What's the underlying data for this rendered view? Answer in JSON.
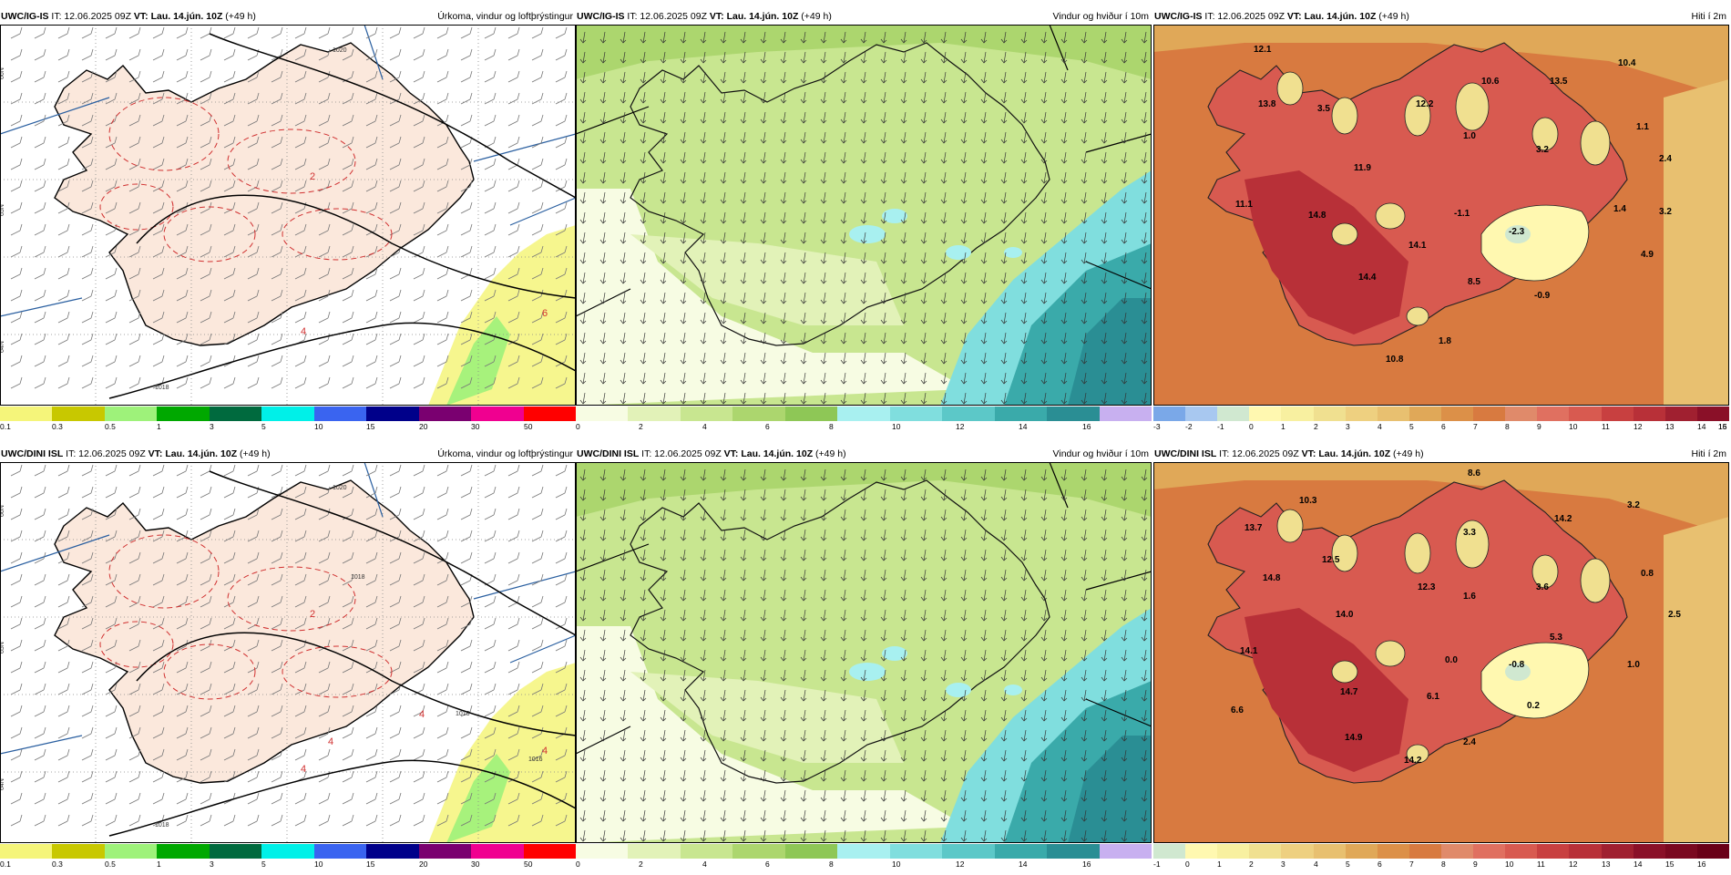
{
  "panels": [
    {
      "id": "igis-precip",
      "model": "UWC/IG-IS",
      "it": "IT: 12.06.2025 09Z",
      "vt": "VT: Lau. 14.jún. 10Z",
      "lead": "(+49 h)",
      "product": "Úrkoma, vindur og loftþrýstingur",
      "palette": [
        "#f5f57a",
        "#c8c800",
        "#9ef27a",
        "#00a800",
        "#006a3e",
        "#00f0e8",
        "#3a64f0",
        "#00008a",
        "#7a0070",
        "#f00090",
        "#ff0000"
      ],
      "ticks": [
        "0.1",
        "0.3",
        "0.5",
        "1",
        "3",
        "5",
        "10",
        "15",
        "20",
        "30",
        "50"
      ],
      "isobars": [
        "1020",
        "1018"
      ],
      "map_labels": [
        "2",
        "6",
        "4"
      ],
      "lat_labels": [
        "66N",
        "65N",
        "64N"
      ]
    },
    {
      "id": "igis-wind",
      "model": "UWC/IG-IS",
      "it": "IT: 12.06.2025 09Z",
      "vt": "VT: Lau. 14.jún. 10Z",
      "lead": "(+49 h)",
      "product": "Vindur og hviður í 10m",
      "palette": [
        "#f7fce3",
        "#e2f2b8",
        "#c8e690",
        "#acd66e",
        "#8ec756",
        "#a8f0f0",
        "#80dede",
        "#5cc8c8",
        "#3aaaaa",
        "#2a8e94",
        "#c8b0f0"
      ],
      "ticks": [
        "0",
        "2",
        "4",
        "6",
        "8",
        "10",
        "12",
        "14",
        "16"
      ],
      "lat_labels": [
        "66N",
        "65N",
        "64N"
      ]
    },
    {
      "id": "igis-temp",
      "model": "UWC/IG-IS",
      "it": "IT: 12.06.2025 09Z",
      "vt": "VT: Lau. 14.jún. 10Z",
      "lead": "(+49 h)",
      "product": "Hiti í 2m",
      "palette": [
        "#7aa8e8",
        "#a8c8f0",
        "#d0e8d0",
        "#fff8b0",
        "#f8f0a0",
        "#f0e090",
        "#eed080",
        "#e8c070",
        "#e0a858",
        "#dc9048",
        "#d87a40",
        "#e08a6a",
        "#e07060",
        "#d85a50",
        "#c84040",
        "#b83038",
        "#a02030",
        "#8a1028"
      ],
      "ticks": [
        "-3",
        "-2",
        "-1",
        "0",
        "1",
        "2",
        "3",
        "4",
        "5",
        "6",
        "7",
        "8",
        "9",
        "10",
        "11",
        "12",
        "13",
        "14",
        "15",
        "16"
      ],
      "values": [
        {
          "v": "12.1"
        },
        {
          "v": "13.8"
        },
        {
          "v": "3.5"
        },
        {
          "v": "12.2"
        },
        {
          "v": "10.6"
        },
        {
          "v": "13.5"
        },
        {
          "v": "10.4"
        },
        {
          "v": "1.0"
        },
        {
          "v": "3.2"
        },
        {
          "v": "1.1"
        },
        {
          "v": "2.4"
        },
        {
          "v": "11.9"
        },
        {
          "v": "11.1"
        },
        {
          "v": "14.8"
        },
        {
          "v": "-1.1"
        },
        {
          "v": "-2.3"
        },
        {
          "v": "1.4"
        },
        {
          "v": "3.2"
        },
        {
          "v": "14.1"
        },
        {
          "v": "4.9"
        },
        {
          "v": "14.4"
        },
        {
          "v": "8.5"
        },
        {
          "v": "-0.9"
        },
        {
          "v": "1.8"
        },
        {
          "v": "10.8"
        }
      ]
    },
    {
      "id": "dini-precip",
      "model": "UWC/DINI ISL",
      "it": "IT: 12.06.2025 09Z",
      "vt": "VT: Lau. 14.jún. 10Z",
      "lead": "(+49 h)",
      "product": "Úrkoma, vindur og loftþrýstingur",
      "palette": [
        "#f5f57a",
        "#c8c800",
        "#9ef27a",
        "#00a800",
        "#006a3e",
        "#00f0e8",
        "#3a64f0",
        "#00008a",
        "#7a0070",
        "#f00090",
        "#ff0000"
      ],
      "ticks": [
        "0.1",
        "0.3",
        "0.5",
        "1",
        "3",
        "5",
        "10",
        "15",
        "20",
        "30",
        "50"
      ],
      "isobars": [
        "1020",
        "1018",
        "1018",
        "1018",
        "1016"
      ],
      "map_labels": [
        "2",
        "4",
        "4",
        "4",
        "4"
      ],
      "lat_labels": [
        "66N",
        "65N",
        "64N"
      ]
    },
    {
      "id": "dini-wind",
      "model": "UWC/DINI ISL",
      "it": "IT: 12.06.2025 09Z",
      "vt": "VT: Lau. 14.jún. 10Z",
      "lead": "(+49 h)",
      "product": "Vindur og hviður í 10m",
      "palette": [
        "#f7fce3",
        "#e2f2b8",
        "#c8e690",
        "#acd66e",
        "#8ec756",
        "#a8f0f0",
        "#80dede",
        "#5cc8c8",
        "#3aaaaa",
        "#2a8e94",
        "#c8b0f0"
      ],
      "ticks": [
        "0",
        "2",
        "4",
        "6",
        "8",
        "10",
        "12",
        "14",
        "16"
      ],
      "lat_labels": [
        "66N",
        "65N",
        "64N"
      ]
    },
    {
      "id": "dini-temp",
      "model": "UWC/DINI ISL",
      "it": "IT: 12.06.2025 09Z",
      "vt": "VT: Lau. 14.jún. 10Z",
      "lead": "(+49 h)",
      "product": "Hiti í 2m",
      "palette": [
        "#d0e8d0",
        "#fff8b0",
        "#f8f0a0",
        "#f0e090",
        "#eed080",
        "#e8c070",
        "#e0a858",
        "#dc9048",
        "#d87a40",
        "#e08a6a",
        "#e07060",
        "#d85a50",
        "#c84040",
        "#b83038",
        "#a02030",
        "#8a1028",
        "#7a0820",
        "#6a0018"
      ],
      "ticks": [
        "-1",
        "0",
        "1",
        "2",
        "3",
        "4",
        "5",
        "6",
        "7",
        "8",
        "9",
        "10",
        "11",
        "12",
        "13",
        "14",
        "15",
        "16"
      ],
      "values": [
        {
          "v": "8.6"
        },
        {
          "v": "10.3"
        },
        {
          "v": "13.7"
        },
        {
          "v": "3.3"
        },
        {
          "v": "14.2"
        },
        {
          "v": "3.2"
        },
        {
          "v": "12.5"
        },
        {
          "v": "14.8"
        },
        {
          "v": "0.8"
        },
        {
          "v": "12.3"
        },
        {
          "v": "1.6"
        },
        {
          "v": "3.6"
        },
        {
          "v": "14.0"
        },
        {
          "v": "2.5"
        },
        {
          "v": "5.3"
        },
        {
          "v": "14.1"
        },
        {
          "v": "0.0"
        },
        {
          "v": "-0.8"
        },
        {
          "v": "1.0"
        },
        {
          "v": "14.7"
        },
        {
          "v": "6.1"
        },
        {
          "v": "6.6"
        },
        {
          "v": "0.2"
        },
        {
          "v": "14.9"
        },
        {
          "v": "2.4"
        },
        {
          "v": "14.2"
        }
      ]
    }
  ]
}
